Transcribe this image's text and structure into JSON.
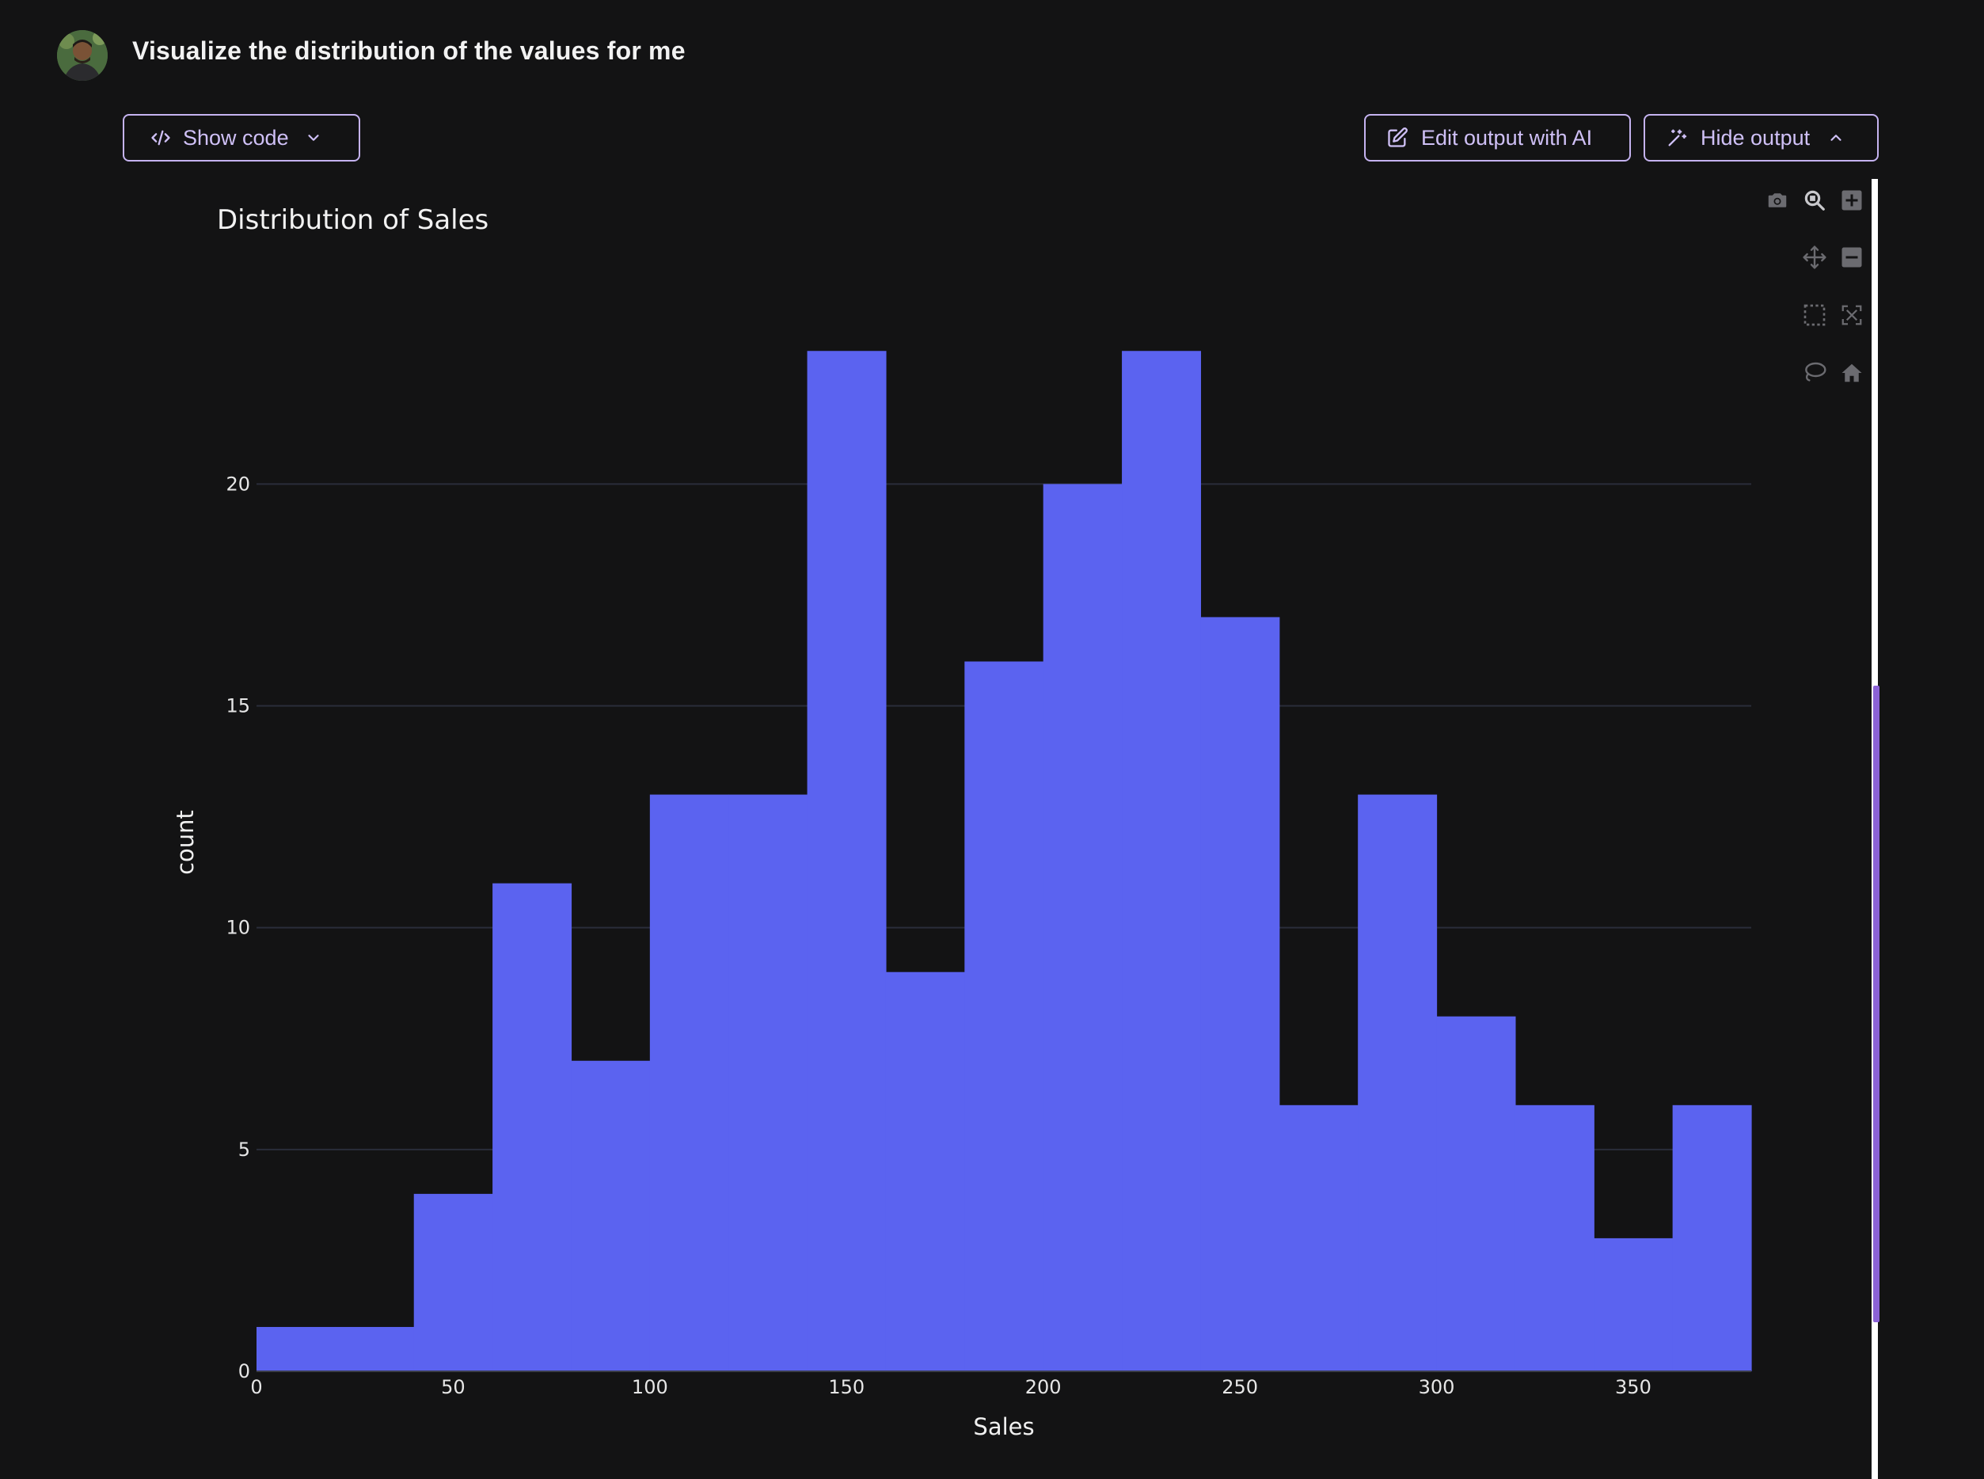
{
  "header": {
    "prompt": "Visualize the distribution of the values for me"
  },
  "toolbar": {
    "show_code_label": "Show code",
    "edit_output_label": "Edit output with AI",
    "hide_output_label": "Hide output"
  },
  "colors": {
    "background": "#131314",
    "bar": "#5b63f0",
    "accent": "#c5b3f0",
    "gridline": "#2a2d3a",
    "scroll_thumb": "#8b62d6"
  },
  "modebar": {
    "icons": [
      "camera-icon",
      "zoom-icon",
      "zoom-in-icon",
      "pan-icon",
      "zoom-out-icon",
      "box-select-icon",
      "autoscale-icon",
      "lasso-icon",
      "home-icon"
    ]
  },
  "chart_data": {
    "type": "bar",
    "subtype": "histogram",
    "title": "Distribution of Sales",
    "xlabel": "Sales",
    "ylabel": "count",
    "bin_edges": [
      0,
      20,
      40,
      60,
      80,
      100,
      120,
      140,
      160,
      180,
      200,
      220,
      240,
      260,
      280,
      300,
      320,
      340,
      360,
      380
    ],
    "values": [
      1,
      1,
      4,
      11,
      7,
      13,
      13,
      23,
      9,
      16,
      20,
      23,
      17,
      6,
      13,
      8,
      6,
      3,
      6
    ],
    "xlim": [
      0,
      380
    ],
    "ylim": [
      0,
      24.2
    ],
    "x_ticks": [
      "0",
      "50",
      "100",
      "150",
      "200",
      "250",
      "300",
      "350"
    ],
    "y_ticks": [
      "0",
      "5",
      "10",
      "15",
      "20"
    ],
    "grid": true,
    "legend": "none"
  }
}
